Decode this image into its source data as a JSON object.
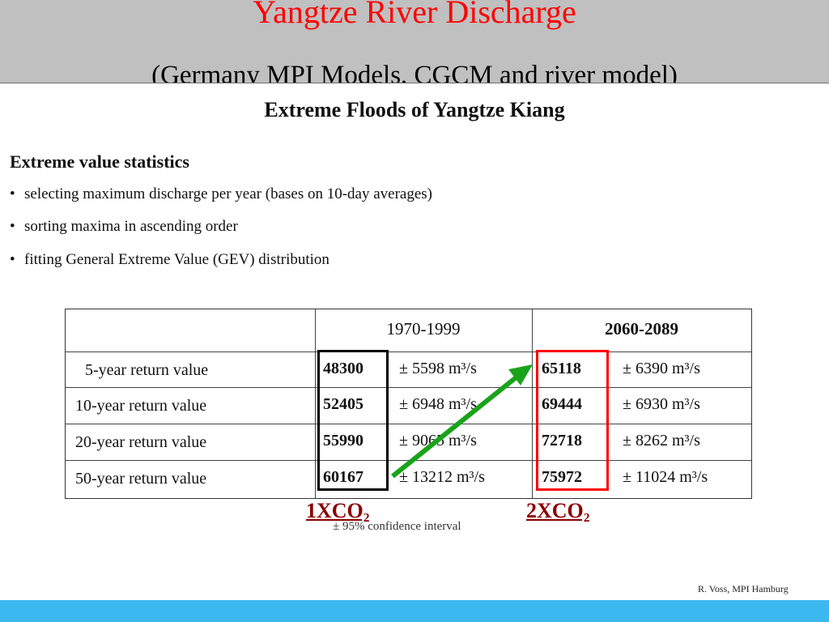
{
  "header": {
    "title": "Yangtze River Discharge",
    "subtitle": "(Germany MPI Models, CGCM and river model)"
  },
  "document": {
    "title": "Extreme Floods of Yangtze Kiang",
    "section": "Extreme value statistics",
    "bullets": [
      "selecting maximum discharge per year (bases on 10-day averages)",
      "sorting maxima in ascending order",
      "fitting General Extreme Value (GEV) distribution"
    ],
    "bullet_mark": "•"
  },
  "table": {
    "periods": [
      "1970-1999",
      "2060-2089"
    ],
    "rows": [
      {
        "label": "5-year return value",
        "v1": "48300",
        "ci1": "± 5598 m³/s",
        "v2": "65118",
        "ci2": "± 6390 m³/s"
      },
      {
        "label": "10-year return value",
        "v1": "52405",
        "ci1": "± 6948 m³/s",
        "v2": "69444",
        "ci2": "± 6930 m³/s"
      },
      {
        "label": "20-year return value",
        "v1": "55990",
        "ci1": "± 9065 m³/s",
        "v2": "72718",
        "ci2": "± 8262 m³/s"
      },
      {
        "label": "50-year return value",
        "v1": "60167",
        "ci1": "± 13212 m³/s",
        "v2": "75972",
        "ci2": "± 11024 m³/s"
      }
    ]
  },
  "annotations": {
    "left_label": "1XCO₂",
    "right_label": "2XCO₂",
    "confidence_note": "± 95% confidence interval",
    "arrow_color": "#1aa31a",
    "box_left_color": "#000000",
    "box_right_color": "#ff0000"
  },
  "credit": "R. Voss, MPI Hamburg"
}
